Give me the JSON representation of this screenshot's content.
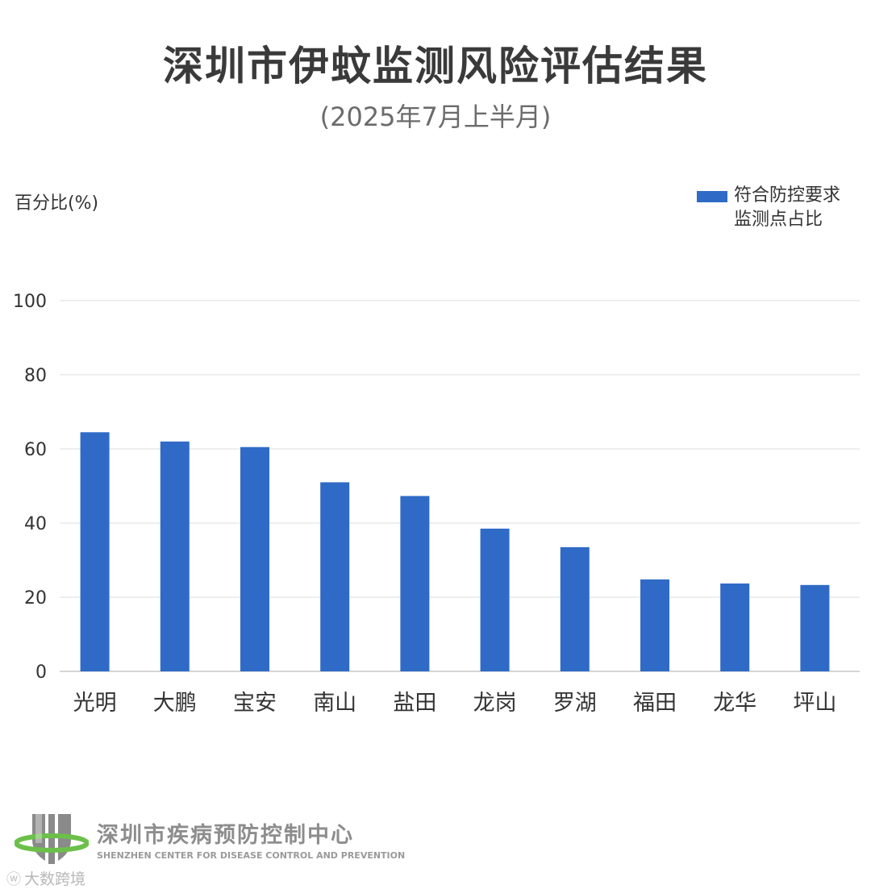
{
  "chart_data": {
    "type": "bar",
    "title": "深圳市伊蚊监测风险评估结果",
    "subtitle": "(2025年7月上半月)",
    "ylabel": "百分比(%)",
    "xlabel": "",
    "categories": [
      "光明",
      "大鹏",
      "宝安",
      "南山",
      "盐田",
      "龙岗",
      "罗湖",
      "福田",
      "龙华",
      "坪山"
    ],
    "series": [
      {
        "name": "符合防控要求监测点占比",
        "values": [
          64.5,
          62.0,
          60.5,
          51.0,
          47.3,
          38.5,
          33.5,
          24.8,
          23.7,
          23.3
        ]
      }
    ],
    "ylim": [
      0,
      100
    ],
    "yticks": [
      "0",
      "20",
      "40",
      "60",
      "80",
      "100"
    ],
    "grid": true,
    "legend_position": "top-right",
    "bar_color": "#2f6bc6"
  },
  "legend": {
    "line1": "符合防控要求",
    "line2": "监测点占比"
  },
  "footer": {
    "org_name": "深圳市疾病预防控制中心",
    "org_name_en": "SHENZHEN CENTER FOR DISEASE CONTROL AND PREVENTION",
    "logo_icon": "shenzhen-cdc-logo-icon"
  },
  "watermark": {
    "text": "大数跨境",
    "icon": "weibo-icon"
  }
}
